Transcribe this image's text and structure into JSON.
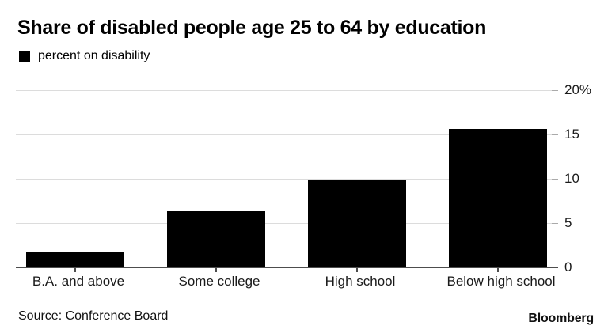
{
  "header": {
    "title": "Share of disabled people age 25 to 64 by education",
    "legend": {
      "swatch_color": "#000000",
      "label": "percent on disability"
    }
  },
  "chart_data": {
    "type": "bar",
    "title": "Share of disabled people age 25 to 64 by education",
    "series_name": "percent on disability",
    "categories": [
      "B.A. and above",
      "Some college",
      "High school",
      "Below high school"
    ],
    "values": [
      1.8,
      6.3,
      9.8,
      15.6
    ],
    "xlabel": "",
    "ylabel": "",
    "ylim": [
      0,
      20
    ],
    "yticks": [
      0,
      5,
      10,
      15,
      20
    ],
    "ytick_labels": [
      "0",
      "5",
      "10",
      "15",
      "20%"
    ],
    "grid": "horizontal-only",
    "legend_position": "top-left",
    "bar_color": "#000000"
  },
  "footer": {
    "source": "Source: Conference Board",
    "brand": "Bloomberg"
  },
  "colors": {
    "background": "#ffffff",
    "bar": "#000000",
    "gridline": "#dcdcdc",
    "baseline": "#4d4d4d",
    "axis_text": "#1a1a1a",
    "title_text": "#000000"
  }
}
